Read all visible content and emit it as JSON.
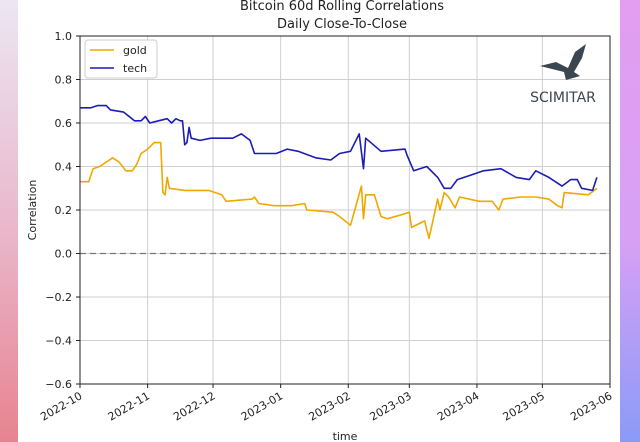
{
  "chart_data": {
    "type": "line",
    "title": "Bitcoin 60d Rolling Correlations",
    "subtitle": "Daily Close-To-Close",
    "xlabel": "time",
    "ylabel": "Correlation",
    "ylim": [
      -0.6,
      1.0
    ],
    "yticks": [
      "1.0",
      "0.8",
      "0.6",
      "0.4",
      "0.2",
      "0.0",
      "−0.2",
      "−0.4",
      "−0.6"
    ],
    "ytick_values": [
      1.0,
      0.8,
      0.6,
      0.4,
      0.2,
      0.0,
      -0.2,
      -0.4,
      -0.6
    ],
    "xticks": [
      "2022-10",
      "2022-11",
      "2022-12",
      "2023-01",
      "2023-02",
      "2023-03",
      "2023-04",
      "2023-05",
      "2023-06"
    ],
    "xtick_days": [
      0,
      31,
      61,
      92,
      123,
      151,
      182,
      212,
      243
    ],
    "x_unit": "days since 2022-10-01",
    "grid": true,
    "reference_line": 0.0,
    "legend_position": "top-left",
    "watermark": "SCIMITAR",
    "series": [
      {
        "name": "gold",
        "color": "#f0a800",
        "x": [
          0,
          4,
          6,
          9,
          15,
          18,
          21,
          24,
          26,
          28,
          31,
          34,
          37,
          38,
          39,
          40,
          41,
          48,
          59,
          65,
          67,
          79,
          80,
          82,
          89,
          97,
          103,
          104,
          116,
          119,
          124,
          126,
          129,
          130,
          131,
          135,
          138,
          141,
          148,
          151,
          152,
          156,
          158,
          160,
          164,
          165,
          167,
          169,
          172,
          174,
          183,
          189,
          192,
          194,
          202,
          209,
          215,
          219,
          221,
          222,
          233,
          237
        ],
        "y": [
          0.33,
          0.33,
          0.39,
          0.4,
          0.44,
          0.42,
          0.38,
          0.38,
          0.41,
          0.46,
          0.48,
          0.51,
          0.51,
          0.28,
          0.27,
          0.35,
          0.3,
          0.29,
          0.29,
          0.27,
          0.24,
          0.25,
          0.26,
          0.23,
          0.22,
          0.22,
          0.23,
          0.2,
          0.19,
          0.17,
          0.13,
          0.2,
          0.31,
          0.16,
          0.27,
          0.27,
          0.17,
          0.16,
          0.18,
          0.19,
          0.12,
          0.14,
          0.15,
          0.07,
          0.25,
          0.2,
          0.28,
          0.26,
          0.21,
          0.26,
          0.24,
          0.24,
          0.2,
          0.25,
          0.26,
          0.26,
          0.25,
          0.22,
          0.21,
          0.28,
          0.27,
          0.3
        ]
      },
      {
        "name": "tech",
        "color": "#1c1cb8",
        "x": [
          0,
          5,
          8,
          12,
          14,
          20,
          25,
          28,
          30,
          32,
          36,
          40,
          42,
          44,
          46,
          47,
          48,
          49,
          50,
          51,
          55,
          60,
          70,
          74,
          78,
          80,
          90,
          95,
          100,
          108,
          115,
          119,
          124,
          128,
          130,
          131,
          138,
          149,
          150,
          153,
          159,
          164,
          167,
          170,
          173,
          179,
          185,
          193,
          200,
          206,
          209,
          215,
          221,
          225,
          228,
          230,
          235,
          237
        ],
        "y": [
          0.67,
          0.67,
          0.68,
          0.68,
          0.66,
          0.65,
          0.61,
          0.61,
          0.63,
          0.6,
          0.61,
          0.62,
          0.6,
          0.62,
          0.61,
          0.61,
          0.5,
          0.51,
          0.58,
          0.53,
          0.52,
          0.53,
          0.53,
          0.55,
          0.52,
          0.46,
          0.46,
          0.48,
          0.47,
          0.44,
          0.43,
          0.46,
          0.47,
          0.55,
          0.39,
          0.53,
          0.47,
          0.48,
          0.45,
          0.38,
          0.4,
          0.35,
          0.3,
          0.3,
          0.34,
          0.36,
          0.38,
          0.39,
          0.35,
          0.34,
          0.38,
          0.35,
          0.31,
          0.34,
          0.34,
          0.3,
          0.29,
          0.35
        ]
      }
    ]
  }
}
